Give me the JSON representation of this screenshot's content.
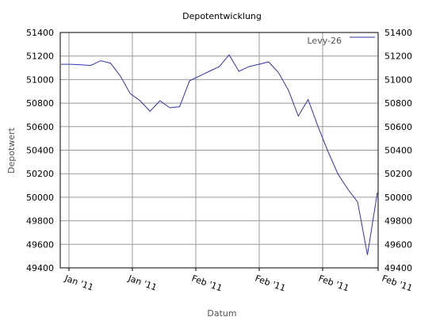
{
  "chart_data": {
    "type": "line",
    "title": "Depotentwicklung",
    "xlabel": "Datum",
    "ylabel": "Depotwert",
    "ylim": [
      49400,
      51400
    ],
    "yticks": [
      49400,
      49600,
      49800,
      50000,
      50200,
      50400,
      50600,
      50800,
      51000,
      51200,
      51400
    ],
    "xtick_labels": [
      "Jan '11",
      "Jan '11",
      "Feb '11",
      "Feb '11",
      "Feb '11",
      "Feb '11"
    ],
    "grid": true,
    "legend": "top-right",
    "series": [
      {
        "name": "Levy-26",
        "color": "#3333aa",
        "values": [
          51130,
          51130,
          51125,
          51120,
          51160,
          51140,
          51030,
          50880,
          50820,
          50730,
          50820,
          50760,
          50770,
          50990,
          51030,
          51070,
          51110,
          51210,
          51070,
          51110,
          51130,
          51150,
          51060,
          50910,
          50690,
          50830,
          50600,
          50390,
          50200,
          50070,
          49960,
          49510,
          50040
        ]
      }
    ]
  }
}
